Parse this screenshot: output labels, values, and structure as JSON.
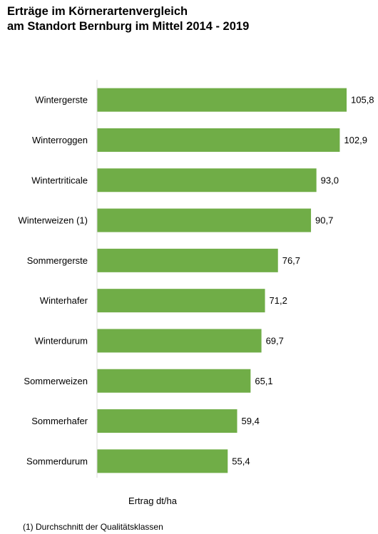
{
  "title_line1": "Erträge im Körnerartenvergleich",
  "title_line2": "am Standort Bernburg im Mittel 2014 - 2019",
  "footnote": "(1) Durchschnitt der Qualitätsklassen",
  "colors": {
    "bar": "#70ad47",
    "axis": "#d9d9d9"
  },
  "chart_data": {
    "type": "bar",
    "orientation": "horizontal",
    "categories": [
      "Wintergerste",
      "Winterroggen",
      "Wintertriticale",
      "Winterweizen (1)",
      "Sommergerste",
      "Winterhafer",
      "Winterdurum",
      "Sommerweizen",
      "Sommerhafer",
      "Sommerdurum"
    ],
    "values": [
      105.8,
      102.9,
      93.0,
      90.7,
      76.7,
      71.2,
      69.7,
      65.1,
      59.4,
      55.4
    ],
    "value_labels": [
      "105,8",
      "102,9",
      "93,0",
      "90,7",
      "76,7",
      "71,2",
      "69,7",
      "65,1",
      "59,4",
      "55,4"
    ],
    "xlabel": "Ertrag dt/ha",
    "xlim": [
      0,
      105.8
    ],
    "grid": false,
    "legend": "none"
  }
}
